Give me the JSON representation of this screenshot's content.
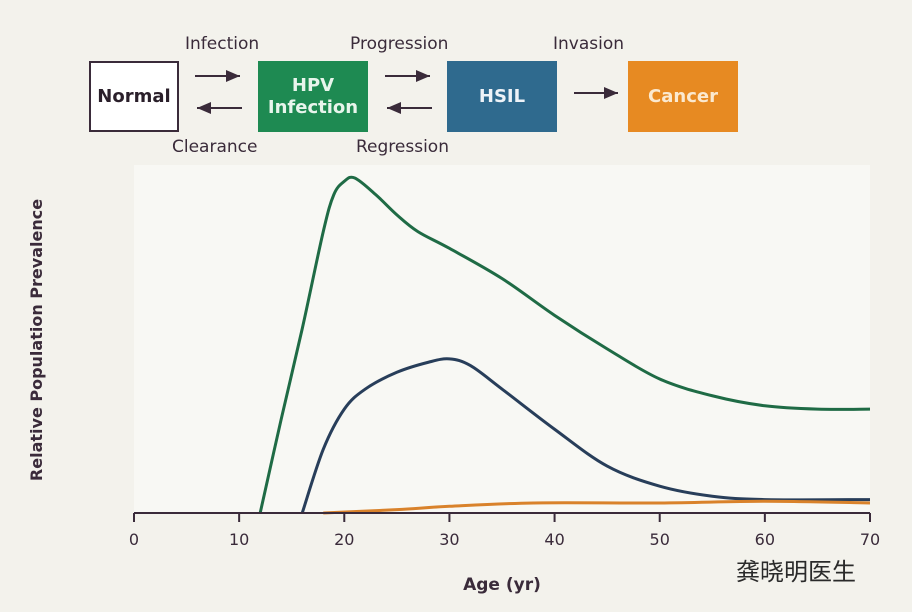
{
  "diagram": {
    "states": [
      {
        "label": "Normal",
        "color": "#ffffff",
        "text_color": "#2a1f2a"
      },
      {
        "label": "HPV\nInfection",
        "color": "#1e8a52",
        "text_color": "#e8f5ec"
      },
      {
        "label": "HSIL",
        "color": "#2f6a8e",
        "text_color": "#eef3f8"
      },
      {
        "label": "Cancer",
        "color": "#e78a22",
        "text_color": "#fbe9cf"
      }
    ],
    "transitions": {
      "infection": "Infection",
      "clearance": "Clearance",
      "progression": "Progression",
      "regression": "Regression",
      "invasion": "Invasion"
    }
  },
  "chart_data": {
    "type": "line",
    "xlabel": "Age (yr)",
    "ylabel": "Relative Population Prevalence",
    "xlim": [
      0,
      70
    ],
    "ylim": [
      0,
      1
    ],
    "xticks": [
      0,
      10,
      20,
      30,
      40,
      50,
      60,
      70
    ],
    "grid": false,
    "series": [
      {
        "color": "#1f6b45",
        "x": [
          12,
          14,
          16,
          18,
          19,
          20,
          21,
          23,
          25,
          27,
          30,
          35,
          40,
          45,
          50,
          55,
          60,
          65,
          70
        ],
        "y": [
          0,
          0.28,
          0.55,
          0.84,
          0.95,
          0.99,
          1.0,
          0.95,
          0.89,
          0.84,
          0.79,
          0.7,
          0.59,
          0.49,
          0.4,
          0.35,
          0.32,
          0.31,
          0.31
        ]
      },
      {
        "color": "#283e5a",
        "x": [
          16,
          18,
          20,
          22,
          25,
          28,
          30,
          32,
          35,
          40,
          45,
          50,
          55,
          60,
          70
        ],
        "y": [
          0,
          0.19,
          0.31,
          0.37,
          0.42,
          0.45,
          0.46,
          0.44,
          0.37,
          0.25,
          0.14,
          0.08,
          0.05,
          0.04,
          0.04
        ]
      },
      {
        "color": "#d9822b",
        "x": [
          18,
          25,
          30,
          38,
          50,
          60,
          70
        ],
        "y": [
          0,
          0.01,
          0.02,
          0.03,
          0.03,
          0.035,
          0.03
        ]
      }
    ]
  },
  "watermark": "龚晓明医生"
}
